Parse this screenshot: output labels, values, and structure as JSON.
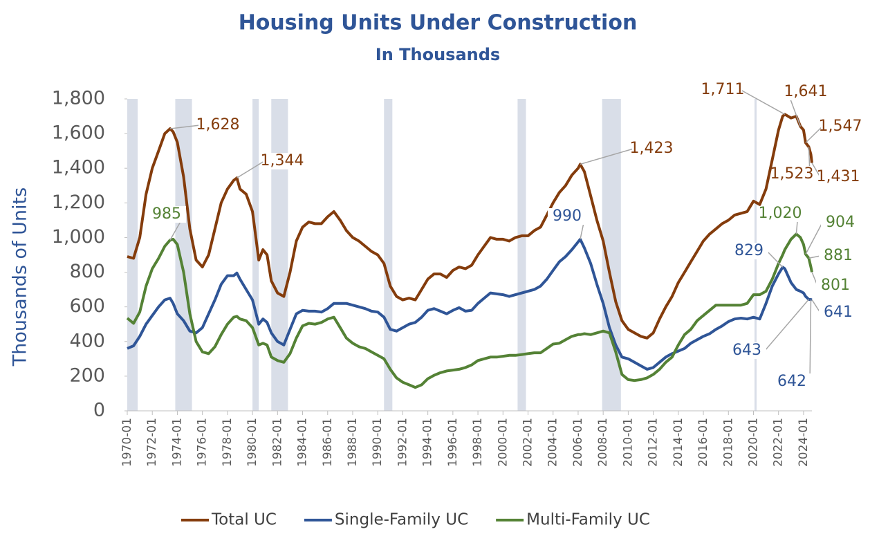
{
  "chart_data": {
    "type": "line",
    "title": "Housing Units Under Construction",
    "subtitle": "In Thousands",
    "y_label": "Thousands of Units",
    "x": [
      "1970-01",
      "1970-07",
      "1971-01",
      "1971-07",
      "1972-01",
      "1972-07",
      "1973-01",
      "1973-06",
      "1973-09",
      "1974-01",
      "1974-07",
      "1975-01",
      "1975-07",
      "1976-01",
      "1976-07",
      "1977-01",
      "1977-07",
      "1978-01",
      "1978-07",
      "1978-10",
      "1979-01",
      "1979-07",
      "1980-01",
      "1980-07",
      "1980-11",
      "1981-03",
      "1981-07",
      "1982-01",
      "1982-07",
      "1983-01",
      "1983-07",
      "1984-01",
      "1984-07",
      "1985-01",
      "1985-07",
      "1986-01",
      "1986-07",
      "1987-01",
      "1987-07",
      "1988-01",
      "1988-07",
      "1989-01",
      "1989-07",
      "1990-01",
      "1990-07",
      "1991-01",
      "1991-07",
      "1992-01",
      "1992-07",
      "1993-01",
      "1993-07",
      "1994-01",
      "1994-07",
      "1995-01",
      "1995-07",
      "1996-01",
      "1996-07",
      "1997-01",
      "1997-07",
      "1998-01",
      "1998-07",
      "1999-01",
      "1999-07",
      "2000-01",
      "2000-07",
      "2001-01",
      "2001-07",
      "2002-01",
      "2002-07",
      "2003-01",
      "2003-07",
      "2004-01",
      "2004-07",
      "2005-01",
      "2005-07",
      "2006-01",
      "2006-03",
      "2006-07",
      "2007-01",
      "2007-07",
      "2008-01",
      "2008-07",
      "2009-01",
      "2009-07",
      "2010-01",
      "2010-07",
      "2011-01",
      "2011-07",
      "2012-01",
      "2012-07",
      "2013-01",
      "2013-07",
      "2014-01",
      "2014-07",
      "2015-01",
      "2015-07",
      "2016-01",
      "2016-07",
      "2017-01",
      "2017-07",
      "2018-01",
      "2018-07",
      "2019-01",
      "2019-07",
      "2020-01",
      "2020-07",
      "2021-01",
      "2021-07",
      "2022-01",
      "2022-05",
      "2022-07",
      "2023-01",
      "2023-06",
      "2023-10",
      "2024-01",
      "2024-03",
      "2024-06",
      "2024-08",
      "2024-09"
    ],
    "series": [
      {
        "name": "Total UC",
        "color": "#843c0c",
        "values": [
          890,
          880,
          1000,
          1250,
          1400,
          1500,
          1600,
          1628,
          1610,
          1550,
          1350,
          1050,
          870,
          830,
          900,
          1050,
          1200,
          1280,
          1330,
          1344,
          1280,
          1250,
          1150,
          870,
          930,
          900,
          750,
          680,
          660,
          800,
          980,
          1060,
          1090,
          1080,
          1080,
          1120,
          1150,
          1100,
          1040,
          1000,
          980,
          950,
          920,
          900,
          850,
          720,
          660,
          640,
          650,
          640,
          700,
          760,
          790,
          790,
          770,
          810,
          830,
          820,
          840,
          900,
          950,
          1000,
          990,
          990,
          980,
          1000,
          1010,
          1010,
          1040,
          1060,
          1130,
          1200,
          1260,
          1300,
          1360,
          1400,
          1423,
          1380,
          1240,
          1100,
          980,
          800,
          630,
          520,
          470,
          450,
          430,
          420,
          450,
          530,
          600,
          660,
          740,
          800,
          860,
          920,
          980,
          1020,
          1050,
          1080,
          1100,
          1130,
          1140,
          1150,
          1210,
          1190,
          1280,
          1450,
          1620,
          1700,
          1711,
          1690,
          1700,
          1641,
          1620,
          1547,
          1523,
          1480,
          1431
        ],
        "annotations": [
          {
            "x": "1973-06",
            "value": 1628,
            "label": "1,628"
          },
          {
            "x": "1978-10",
            "value": 1344,
            "label": "1,344"
          },
          {
            "x": "2006-03",
            "value": 1423,
            "label": "1,423"
          },
          {
            "x": "2022-07",
            "value": 1711,
            "label": "1,711"
          },
          {
            "x": "2023-10",
            "value": 1641,
            "label": "1,641"
          },
          {
            "x": "2024-03",
            "value": 1547,
            "label": "1,547"
          },
          {
            "x": "2024-06",
            "value": 1523,
            "label": "1,523"
          },
          {
            "x": "2024-09",
            "value": 1431,
            "label": "1,431"
          }
        ]
      },
      {
        "name": "Single-Family UC",
        "color": "#2f5597",
        "values": [
          360,
          375,
          430,
          500,
          550,
          600,
          640,
          650,
          620,
          560,
          520,
          460,
          450,
          480,
          560,
          640,
          730,
          780,
          780,
          795,
          760,
          700,
          640,
          500,
          530,
          510,
          450,
          400,
          380,
          470,
          560,
          580,
          575,
          575,
          570,
          590,
          620,
          620,
          620,
          610,
          600,
          590,
          575,
          570,
          540,
          470,
          460,
          480,
          500,
          510,
          540,
          580,
          590,
          575,
          560,
          580,
          595,
          575,
          580,
          620,
          650,
          680,
          675,
          670,
          660,
          670,
          680,
          690,
          700,
          720,
          760,
          810,
          860,
          890,
          930,
          975,
          990,
          940,
          850,
          730,
          620,
          480,
          380,
          310,
          300,
          280,
          260,
          240,
          250,
          280,
          310,
          330,
          345,
          360,
          390,
          410,
          430,
          445,
          470,
          490,
          515,
          530,
          535,
          530,
          540,
          530,
          620,
          720,
          790,
          829,
          820,
          740,
          700,
          690,
          680,
          660,
          643,
          642,
          641
        ],
        "annotations": [
          {
            "x": "2006-03",
            "value": 990,
            "label": "990"
          },
          {
            "x": "2022-05",
            "value": 829,
            "label": "829"
          },
          {
            "x": "2024-06",
            "value": 643,
            "label": "643"
          },
          {
            "x": "2024-08",
            "value": 642,
            "label": "642"
          },
          {
            "x": "2024-09",
            "value": 641,
            "label": "641"
          }
        ]
      },
      {
        "name": "Multi-Family UC",
        "color": "#548235",
        "values": [
          535,
          505,
          570,
          720,
          820,
          880,
          950,
          985,
          990,
          960,
          800,
          560,
          400,
          340,
          330,
          370,
          440,
          500,
          540,
          545,
          530,
          520,
          480,
          380,
          390,
          380,
          310,
          290,
          280,
          330,
          420,
          490,
          505,
          500,
          510,
          530,
          540,
          480,
          420,
          390,
          370,
          360,
          340,
          320,
          300,
          240,
          190,
          165,
          150,
          135,
          150,
          185,
          205,
          220,
          230,
          235,
          240,
          250,
          265,
          290,
          300,
          310,
          310,
          315,
          320,
          320,
          325,
          330,
          335,
          335,
          360,
          385,
          390,
          410,
          430,
          440,
          440,
          445,
          440,
          450,
          460,
          450,
          340,
          210,
          180,
          175,
          180,
          190,
          210,
          240,
          280,
          310,
          380,
          440,
          470,
          520,
          550,
          580,
          610,
          610,
          610,
          610,
          610,
          620,
          670,
          670,
          690,
          760,
          850,
          900,
          930,
          990,
          1020,
          1000,
          960,
          904,
          881,
          830,
          801
        ],
        "annotations": [
          {
            "x": "1973-06",
            "value": 985,
            "label": "985"
          },
          {
            "x": "2023-06",
            "value": 1020,
            "label": "1,020"
          },
          {
            "x": "2024-03",
            "value": 904,
            "label": "904"
          },
          {
            "x": "2024-06",
            "value": 881,
            "label": "881"
          },
          {
            "x": "2024-09",
            "value": 801,
            "label": "801"
          }
        ]
      }
    ],
    "recessions": [
      [
        "1970-01",
        "1970-11"
      ],
      [
        "1973-11",
        "1975-03"
      ],
      [
        "1980-01",
        "1980-07"
      ],
      [
        "1981-07",
        "1982-11"
      ],
      [
        "1990-07",
        "1991-03"
      ],
      [
        "2001-03",
        "2001-11"
      ],
      [
        "2007-12",
        "2009-06"
      ],
      [
        "2020-02",
        "2020-04"
      ]
    ],
    "recession_color": "#d9dee8",
    "xlim": [
      "1970-01",
      "2024-09"
    ],
    "xticks": [
      "1970-01",
      "1972-01",
      "1974-01",
      "1976-01",
      "1978-01",
      "1980-01",
      "1982-01",
      "1984-01",
      "1986-01",
      "1988-01",
      "1990-01",
      "1992-01",
      "1994-01",
      "1996-01",
      "1998-01",
      "2000-01",
      "2002-01",
      "2004-01",
      "2006-01",
      "2008-01",
      "2010-01",
      "2012-01",
      "2014-01",
      "2016-01",
      "2018-01",
      "2020-01",
      "2022-01",
      "2024-01"
    ],
    "ylim": [
      0,
      1800
    ],
    "yticks": [
      0,
      200,
      400,
      600,
      800,
      {
        "value": 1000,
        "label": "1,000"
      },
      {
        "value": 1200,
        "label": "1,200"
      },
      {
        "value": 1400,
        "label": "1,400"
      },
      {
        "value": 1600,
        "label": "1,600"
      },
      {
        "value": 1800,
        "label": "1,800"
      }
    ],
    "legend": "bottom"
  }
}
